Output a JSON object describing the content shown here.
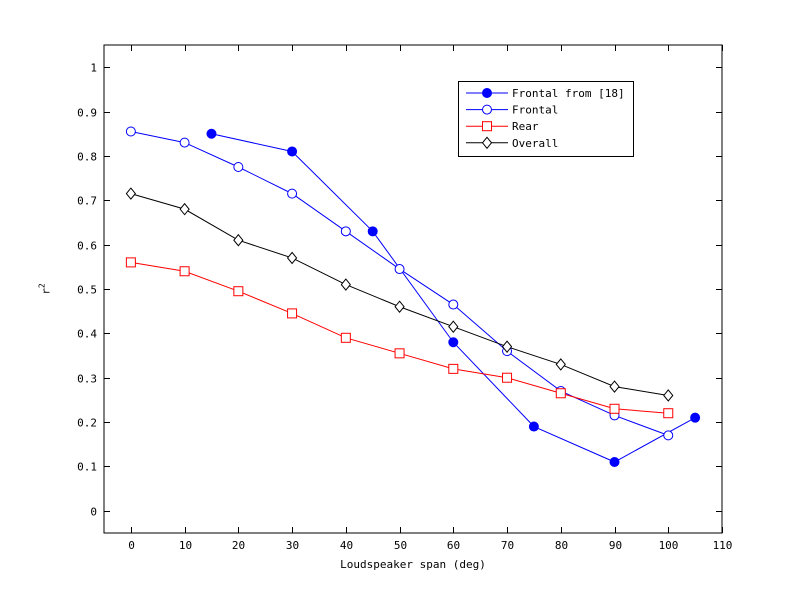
{
  "figure": {
    "background": "#ffffff",
    "axis_color": "#000000",
    "text_color": "#000000"
  },
  "axis_titles": {
    "x": "Loudspeaker span (deg)",
    "y_base": "r",
    "y_sup": "2"
  },
  "chart_data": {
    "type": "line",
    "title": "",
    "xlabel": "Loudspeaker span (deg)",
    "ylabel": "r^2",
    "xlim": [
      -5,
      110
    ],
    "ylim": [
      -0.05,
      1.05
    ],
    "xticks": [
      0,
      10,
      20,
      30,
      40,
      50,
      60,
      70,
      80,
      90,
      100,
      110
    ],
    "xtick_labels": [
      "0",
      "10",
      "20",
      "30",
      "40",
      "50",
      "60",
      "70",
      "80",
      "90",
      "100",
      "110"
    ],
    "yticks": [
      0,
      0.1,
      0.2,
      0.3,
      0.4,
      0.5,
      0.6,
      0.7,
      0.8,
      0.9,
      1
    ],
    "ytick_labels": [
      "0",
      "0.1",
      "0.2",
      "0.3",
      "0.4",
      "0.5",
      "0.6",
      "0.7",
      "0.8",
      "0.9",
      "1"
    ],
    "grid": false,
    "legend": {
      "position": "upper-right-inside"
    },
    "series": [
      {
        "name": "Frontal from [18]",
        "color": "#0000ff",
        "marker": "circle-filled",
        "x": [
          15,
          30,
          45,
          60,
          75,
          90,
          105
        ],
        "y": [
          0.85,
          0.81,
          0.63,
          0.38,
          0.19,
          0.11,
          0.21
        ]
      },
      {
        "name": "Frontal",
        "color": "#0000ff",
        "marker": "circle-open",
        "x": [
          0,
          10,
          20,
          30,
          40,
          50,
          60,
          70,
          80,
          90,
          100
        ],
        "y": [
          0.855,
          0.83,
          0.775,
          0.715,
          0.63,
          0.545,
          0.465,
          0.36,
          0.27,
          0.215,
          0.17
        ]
      },
      {
        "name": "Rear",
        "color": "#ff0000",
        "marker": "square-open",
        "x": [
          0,
          10,
          20,
          30,
          40,
          50,
          60,
          70,
          80,
          90,
          100
        ],
        "y": [
          0.56,
          0.54,
          0.495,
          0.445,
          0.39,
          0.355,
          0.32,
          0.3,
          0.265,
          0.23,
          0.22
        ]
      },
      {
        "name": "Overall",
        "color": "#000000",
        "marker": "diamond-open",
        "x": [
          0,
          10,
          20,
          30,
          40,
          50,
          60,
          70,
          80,
          90,
          100
        ],
        "y": [
          0.715,
          0.68,
          0.61,
          0.57,
          0.51,
          0.46,
          0.415,
          0.37,
          0.33,
          0.28,
          0.26
        ]
      }
    ]
  }
}
